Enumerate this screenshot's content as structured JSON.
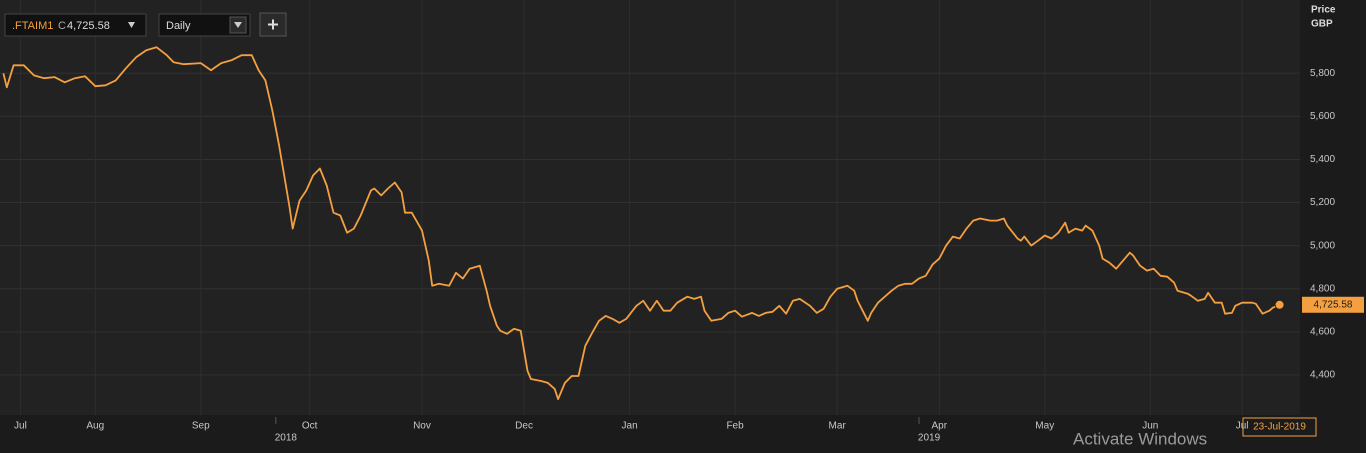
{
  "toolbar": {
    "symbol": ".FTAIM1",
    "close_prefix": "C",
    "interval": "Daily"
  },
  "chart_data": {
    "type": "line",
    "y_axis_title": [
      "Price",
      "GBP"
    ],
    "color": "#f5a040",
    "x": [
      1,
      2,
      4,
      7,
      10,
      13,
      16,
      19,
      22,
      25,
      28,
      31,
      34,
      37,
      40,
      43,
      46,
      49,
      51,
      54,
      59,
      62,
      65,
      68,
      71,
      74,
      76,
      78,
      80,
      82,
      83,
      85,
      86,
      88,
      90,
      92,
      94,
      96,
      98,
      100,
      102,
      104,
      106,
      109,
      110,
      112,
      114,
      116,
      118,
      119,
      121,
      124,
      126,
      127,
      129,
      132,
      134,
      136,
      138,
      141,
      143,
      144,
      146,
      147,
      149,
      151,
      153,
      155,
      156,
      159,
      161,
      163,
      164,
      166,
      168,
      170,
      172,
      174,
      176,
      178,
      180,
      182,
      184,
      187,
      189,
      191,
      193,
      195,
      197,
      199,
      202,
      204,
      206,
      207,
      209,
      212,
      214,
      216,
      218,
      221,
      223,
      225,
      227,
      229,
      231,
      233,
      235,
      238,
      240,
      242,
      244,
      246,
      249,
      251,
      252,
      255,
      256,
      258,
      260,
      262,
      264,
      266,
      268,
      270,
      272,
      274,
      276,
      278,
      280,
      282,
      284,
      286,
      288,
      291,
      293,
      295,
      296,
      299,
      300,
      301,
      303,
      305,
      307,
      309,
      311,
      313,
      314,
      316,
      318,
      319,
      321,
      323,
      324,
      326,
      328,
      330,
      332,
      333,
      335,
      337,
      339,
      341,
      343,
      345,
      346,
      349,
      350,
      352,
      354,
      355,
      357,
      359,
      360,
      362,
      363,
      365,
      368,
      369,
      371,
      373,
      374,
      376
    ],
    "values": [
      5800,
      5735,
      5837,
      5837,
      5790,
      5777,
      5782,
      5758,
      5777,
      5786,
      5740,
      5744,
      5767,
      5823,
      5874,
      5907,
      5921,
      5884,
      5851,
      5842,
      5847,
      5814,
      5847,
      5860,
      5884,
      5884,
      5814,
      5767,
      5628,
      5465,
      5372,
      5186,
      5079,
      5209,
      5256,
      5326,
      5358,
      5279,
      5153,
      5140,
      5060,
      5079,
      5140,
      5256,
      5265,
      5233,
      5265,
      5293,
      5247,
      5153,
      5153,
      5070,
      4930,
      4814,
      4823,
      4814,
      4874,
      4847,
      4893,
      4907,
      4791,
      4721,
      4628,
      4605,
      4591,
      4614,
      4605,
      4419,
      4381,
      4372,
      4363,
      4335,
      4288,
      4363,
      4395,
      4395,
      4535,
      4595,
      4651,
      4674,
      4660,
      4642,
      4660,
      4721,
      4744,
      4698,
      4744,
      4698,
      4698,
      4735,
      4763,
      4753,
      4763,
      4698,
      4651,
      4660,
      4688,
      4698,
      4670,
      4688,
      4674,
      4688,
      4693,
      4721,
      4684,
      4744,
      4753,
      4721,
      4688,
      4707,
      4763,
      4800,
      4814,
      4791,
      4744,
      4651,
      4688,
      4735,
      4763,
      4791,
      4814,
      4823,
      4823,
      4847,
      4860,
      4912,
      4940,
      5000,
      5042,
      5033,
      5079,
      5116,
      5126,
      5116,
      5116,
      5126,
      5093,
      5033,
      5023,
      5042,
      5000,
      5023,
      5047,
      5033,
      5060,
      5107,
      5060,
      5079,
      5070,
      5093,
      5070,
      5000,
      4940,
      4921,
      4893,
      4930,
      4967,
      4954,
      4907,
      4884,
      4893,
      4860,
      4856,
      4828,
      4791,
      4777,
      4767,
      4744,
      4753,
      4781,
      4735,
      4735,
      4684,
      4688,
      4721,
      4735,
      4735,
      4730,
      4684,
      4698,
      4712,
      4725.58
    ],
    "last_price": {
      "value": 4725.58,
      "label": "4,725.58"
    },
    "xlim": [
      0,
      382
    ],
    "xticks": [
      {
        "value": 6,
        "label": "Jul"
      },
      {
        "value": 28,
        "label": "Aug"
      },
      {
        "value": 59,
        "label": "Sep"
      },
      {
        "value": 91,
        "label": "Oct"
      },
      {
        "value": 124,
        "label": "Nov"
      },
      {
        "value": 154,
        "label": "Dec"
      },
      {
        "value": 185,
        "label": "Jan"
      },
      {
        "value": 216,
        "label": "Feb"
      },
      {
        "value": 246,
        "label": "Mar"
      },
      {
        "value": 276,
        "label": "Apr"
      },
      {
        "value": 307,
        "label": "May"
      },
      {
        "value": 338,
        "label": "Jun"
      },
      {
        "value": 365,
        "label": "Jul"
      }
    ],
    "x_year_labels": [
      {
        "value": 84,
        "label": "2018"
      },
      {
        "value": 273,
        "label": "2019"
      }
    ],
    "ylim": [
      4214,
      6140
    ],
    "yticks": [
      {
        "value": 4400,
        "label": "4,400"
      },
      {
        "value": 4600,
        "label": "4,600"
      },
      {
        "value": 4800,
        "label": "4,800"
      },
      {
        "value": 5000,
        "label": "5,000"
      },
      {
        "value": 5200,
        "label": "5,200"
      },
      {
        "value": 5400,
        "label": "5,400"
      },
      {
        "value": 5600,
        "label": "5,600"
      },
      {
        "value": 5800,
        "label": "5,800"
      }
    ],
    "grid": true,
    "crosshair_date": "23-Jul-2019"
  },
  "watermark": "Activate Windows"
}
